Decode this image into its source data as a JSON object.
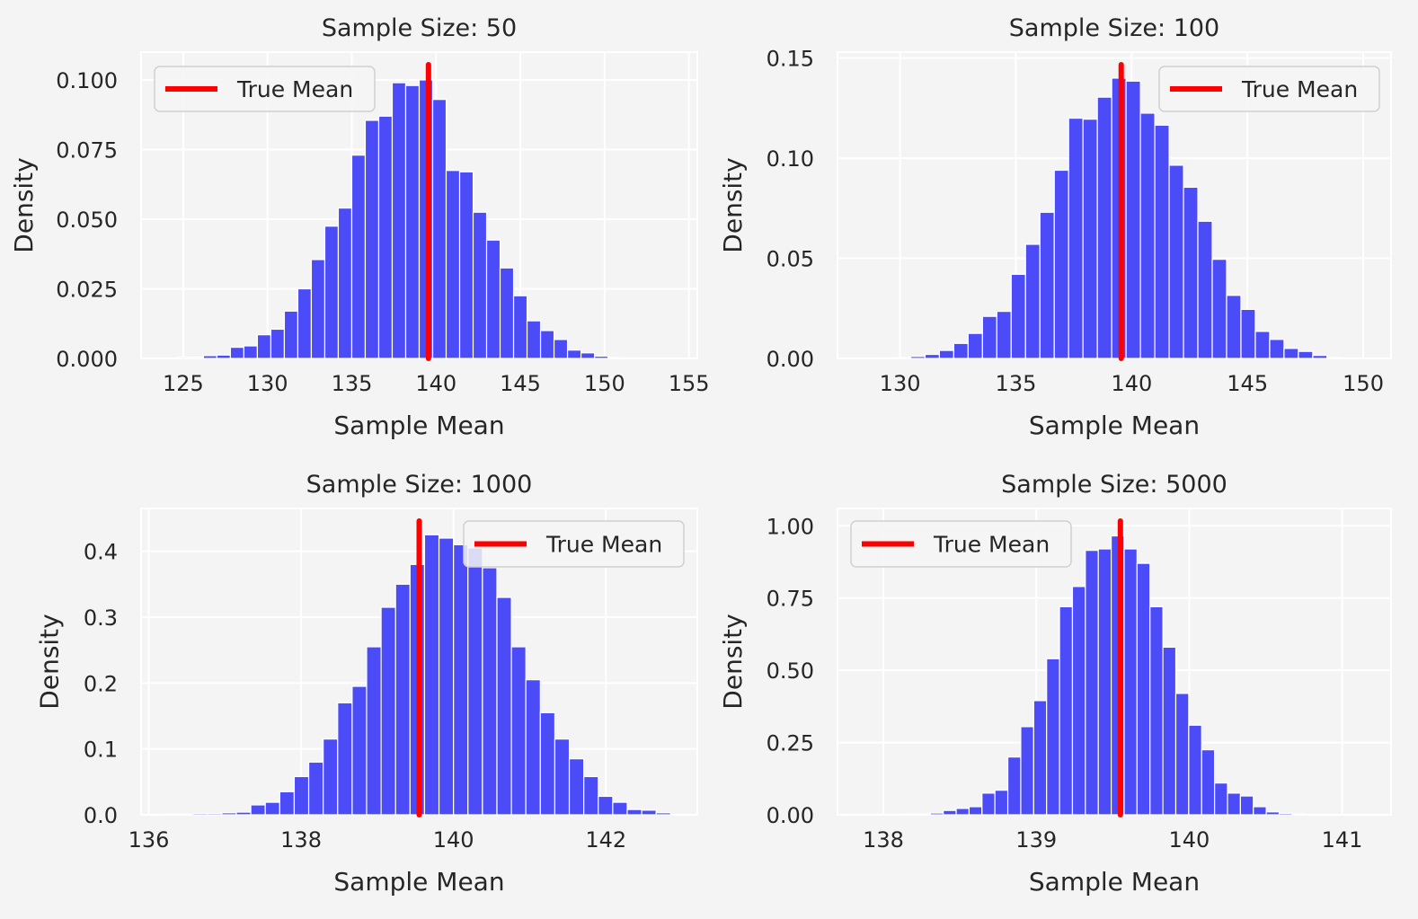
{
  "figure": {
    "background": "#f4f4f4",
    "plot_background": "#f4f4f4",
    "grid_color": "#ffffff",
    "bar_color": "#4b4bf7",
    "mean_line_color": "#ff0000"
  },
  "chart_data": [
    {
      "type": "bar",
      "title": "Sample Size: 50",
      "xlabel": "Sample Mean",
      "ylabel": "Density",
      "xlim": [
        122.5,
        155.5
      ],
      "ylim": [
        0,
        0.11
      ],
      "xticks": [
        125,
        130,
        135,
        140,
        145,
        150,
        155
      ],
      "xtick_labels": [
        "125",
        "130",
        "135",
        "140",
        "145",
        "150",
        "155"
      ],
      "yticks": [
        0,
        0.025,
        0.05,
        0.075,
        0.1
      ],
      "ytick_labels": [
        "0.000",
        "0.025",
        "0.050",
        "0.075",
        "0.100"
      ],
      "grid": true,
      "bin_start": 124.6,
      "bin_width": 0.8,
      "values": [
        0.0004,
        0.0004,
        0.001,
        0.0012,
        0.004,
        0.0045,
        0.0085,
        0.0105,
        0.017,
        0.025,
        0.0355,
        0.0475,
        0.054,
        0.073,
        0.0855,
        0.087,
        0.099,
        0.098,
        0.1,
        0.093,
        0.0675,
        0.067,
        0.0525,
        0.0425,
        0.0325,
        0.0225,
        0.0135,
        0.01,
        0.0068,
        0.003,
        0.002,
        0.0008,
        0.0003,
        0.0002,
        0.0001
      ],
      "true_mean": 139.55,
      "series": [
        {
          "name": "True Mean"
        }
      ],
      "legend": "upper left"
    },
    {
      "type": "bar",
      "title": "Sample Size: 100",
      "xlabel": "Sample Mean",
      "ylabel": "Density",
      "xlim": [
        127.3,
        151.2
      ],
      "ylim": [
        0,
        0.153
      ],
      "xticks": [
        130,
        135,
        140,
        145,
        150
      ],
      "xtick_labels": [
        "130",
        "135",
        "140",
        "145",
        "150"
      ],
      "yticks": [
        0,
        0.05,
        0.1,
        0.15
      ],
      "ytick_labels": [
        "0.00",
        "0.05",
        "0.10",
        "0.15"
      ],
      "grid": true,
      "bin_start": 128.6,
      "bin_width": 0.62,
      "values": [
        0.0002,
        0.0003,
        0.0005,
        0.001,
        0.002,
        0.004,
        0.0075,
        0.0125,
        0.021,
        0.0235,
        0.042,
        0.057,
        0.073,
        0.094,
        0.12,
        0.1195,
        0.1305,
        0.14,
        0.1385,
        0.1225,
        0.1165,
        0.0965,
        0.0855,
        0.0685,
        0.0495,
        0.0315,
        0.0245,
        0.0135,
        0.0095,
        0.005,
        0.0035,
        0.0015,
        0.0005,
        0.0002,
        0.0001
      ],
      "true_mean": 139.55,
      "series": [
        {
          "name": "True Mean"
        }
      ],
      "legend": "upper right"
    },
    {
      "type": "bar",
      "title": "Sample Size: 1000",
      "xlabel": "Sample Mean",
      "ylabel": "Density",
      "xlim": [
        135.9,
        143.2
      ],
      "ylim": [
        0,
        0.465
      ],
      "xticks": [
        136,
        138,
        140,
        142
      ],
      "xtick_labels": [
        "136",
        "138",
        "140",
        "142"
      ],
      "yticks": [
        0,
        0.1,
        0.2,
        0.3,
        0.4
      ],
      "ytick_labels": [
        "0.0",
        "0.1",
        "0.2",
        "0.3",
        "0.4"
      ],
      "grid": true,
      "bin_start": 136.2,
      "bin_width": 0.19,
      "values": [
        0.001,
        0.001,
        0.002,
        0.002,
        0.003,
        0.004,
        0.015,
        0.019,
        0.035,
        0.058,
        0.08,
        0.115,
        0.17,
        0.195,
        0.255,
        0.315,
        0.35,
        0.38,
        0.425,
        0.42,
        0.41,
        0.405,
        0.375,
        0.33,
        0.255,
        0.205,
        0.155,
        0.115,
        0.085,
        0.058,
        0.028,
        0.019,
        0.008,
        0.007,
        0.003
      ],
      "true_mean": 139.55,
      "series": [
        {
          "name": "True Mean"
        }
      ],
      "legend": "upper right"
    },
    {
      "type": "bar",
      "title": "Sample Size: 5000",
      "xlabel": "Sample Mean",
      "ylabel": "Density",
      "xlim": [
        137.7,
        141.32
      ],
      "ylim": [
        0,
        1.06
      ],
      "xticks": [
        138,
        139,
        140,
        141
      ],
      "xtick_labels": [
        "138",
        "139",
        "140",
        "141"
      ],
      "yticks": [
        0,
        0.25,
        0.5,
        0.75,
        1
      ],
      "ytick_labels": [
        "0.00",
        "0.25",
        "0.50",
        "0.75",
        "1.00"
      ],
      "grid": true,
      "bin_start": 137.8,
      "bin_width": 0.0845,
      "values": [
        0.002,
        0.002,
        0.002,
        0.002,
        0.003,
        0.003,
        0.006,
        0.015,
        0.022,
        0.028,
        0.075,
        0.085,
        0.2,
        0.305,
        0.395,
        0.54,
        0.72,
        0.79,
        0.915,
        0.92,
        0.965,
        0.92,
        0.87,
        0.72,
        0.58,
        0.42,
        0.31,
        0.225,
        0.11,
        0.075,
        0.065,
        0.028,
        0.01,
        0.005,
        0.003
      ],
      "true_mean": 139.55,
      "series": [
        {
          "name": "True Mean"
        }
      ],
      "legend": "upper left"
    }
  ]
}
